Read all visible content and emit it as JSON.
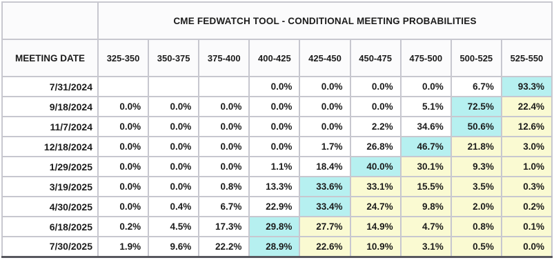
{
  "colors": {
    "cyan_highlight": "#b6f0f0",
    "yellow_highlight": "#fafad2",
    "grid_border": "#c7c7cf",
    "outer_border": "#b9b9c1",
    "bottom_border": "#57575e",
    "text": "#1b1b1b"
  },
  "chart_data": {
    "type": "table",
    "title": "CME FEDWATCH TOOL - CONDITIONAL MEETING PROBABILITIES",
    "row_header_label": "MEETING DATE",
    "columns": [
      "325-350",
      "350-375",
      "375-400",
      "400-425",
      "425-450",
      "450-475",
      "475-500",
      "500-525",
      "525-550"
    ],
    "rows": [
      {
        "date": "7/31/2024",
        "cells": [
          {
            "t": "",
            "bg": "white"
          },
          {
            "t": "",
            "bg": "white"
          },
          {
            "t": "",
            "bg": "white"
          },
          {
            "t": "0.0%",
            "bg": "white"
          },
          {
            "t": "0.0%",
            "bg": "white"
          },
          {
            "t": "0.0%",
            "bg": "white"
          },
          {
            "t": "0.0%",
            "bg": "white"
          },
          {
            "t": "6.7%",
            "bg": "white"
          },
          {
            "t": "93.3%",
            "bg": "cyan"
          }
        ]
      },
      {
        "date": "9/18/2024",
        "cells": [
          {
            "t": "0.0%",
            "bg": "white"
          },
          {
            "t": "0.0%",
            "bg": "white"
          },
          {
            "t": "0.0%",
            "bg": "white"
          },
          {
            "t": "0.0%",
            "bg": "white"
          },
          {
            "t": "0.0%",
            "bg": "white"
          },
          {
            "t": "0.0%",
            "bg": "white"
          },
          {
            "t": "5.1%",
            "bg": "white"
          },
          {
            "t": "72.5%",
            "bg": "cyan"
          },
          {
            "t": "22.4%",
            "bg": "yellow"
          }
        ]
      },
      {
        "date": "11/7/2024",
        "cells": [
          {
            "t": "0.0%",
            "bg": "white"
          },
          {
            "t": "0.0%",
            "bg": "white"
          },
          {
            "t": "0.0%",
            "bg": "white"
          },
          {
            "t": "0.0%",
            "bg": "white"
          },
          {
            "t": "0.0%",
            "bg": "white"
          },
          {
            "t": "2.2%",
            "bg": "white"
          },
          {
            "t": "34.6%",
            "bg": "white"
          },
          {
            "t": "50.6%",
            "bg": "cyan"
          },
          {
            "t": "12.6%",
            "bg": "yellow"
          }
        ]
      },
      {
        "date": "12/18/2024",
        "cells": [
          {
            "t": "0.0%",
            "bg": "white"
          },
          {
            "t": "0.0%",
            "bg": "white"
          },
          {
            "t": "0.0%",
            "bg": "white"
          },
          {
            "t": "0.0%",
            "bg": "white"
          },
          {
            "t": "1.7%",
            "bg": "white"
          },
          {
            "t": "26.8%",
            "bg": "white"
          },
          {
            "t": "46.7%",
            "bg": "cyan"
          },
          {
            "t": "21.8%",
            "bg": "yellow"
          },
          {
            "t": "3.0%",
            "bg": "yellow"
          }
        ]
      },
      {
        "date": "1/29/2025",
        "cells": [
          {
            "t": "0.0%",
            "bg": "white"
          },
          {
            "t": "0.0%",
            "bg": "white"
          },
          {
            "t": "0.0%",
            "bg": "white"
          },
          {
            "t": "1.1%",
            "bg": "white"
          },
          {
            "t": "18.4%",
            "bg": "white"
          },
          {
            "t": "40.0%",
            "bg": "cyan"
          },
          {
            "t": "30.1%",
            "bg": "yellow"
          },
          {
            "t": "9.3%",
            "bg": "yellow"
          },
          {
            "t": "1.0%",
            "bg": "yellow"
          }
        ]
      },
      {
        "date": "3/19/2025",
        "cells": [
          {
            "t": "0.0%",
            "bg": "white"
          },
          {
            "t": "0.0%",
            "bg": "white"
          },
          {
            "t": "0.8%",
            "bg": "white"
          },
          {
            "t": "13.3%",
            "bg": "white"
          },
          {
            "t": "33.6%",
            "bg": "cyan"
          },
          {
            "t": "33.1%",
            "bg": "yellow"
          },
          {
            "t": "15.5%",
            "bg": "yellow"
          },
          {
            "t": "3.5%",
            "bg": "yellow"
          },
          {
            "t": "0.3%",
            "bg": "yellow"
          }
        ]
      },
      {
        "date": "4/30/2025",
        "cells": [
          {
            "t": "0.0%",
            "bg": "white"
          },
          {
            "t": "0.4%",
            "bg": "white"
          },
          {
            "t": "6.7%",
            "bg": "white"
          },
          {
            "t": "22.9%",
            "bg": "white"
          },
          {
            "t": "33.4%",
            "bg": "cyan"
          },
          {
            "t": "24.7%",
            "bg": "yellow"
          },
          {
            "t": "9.8%",
            "bg": "yellow"
          },
          {
            "t": "2.0%",
            "bg": "yellow"
          },
          {
            "t": "0.2%",
            "bg": "yellow"
          }
        ]
      },
      {
        "date": "6/18/2025",
        "cells": [
          {
            "t": "0.2%",
            "bg": "white"
          },
          {
            "t": "4.5%",
            "bg": "white"
          },
          {
            "t": "17.3%",
            "bg": "white"
          },
          {
            "t": "29.8%",
            "bg": "cyan"
          },
          {
            "t": "27.7%",
            "bg": "yellow"
          },
          {
            "t": "14.9%",
            "bg": "yellow"
          },
          {
            "t": "4.7%",
            "bg": "yellow"
          },
          {
            "t": "0.8%",
            "bg": "yellow"
          },
          {
            "t": "0.1%",
            "bg": "yellow"
          }
        ]
      },
      {
        "date": "7/30/2025",
        "cells": [
          {
            "t": "1.9%",
            "bg": "white"
          },
          {
            "t": "9.6%",
            "bg": "white"
          },
          {
            "t": "22.2%",
            "bg": "white"
          },
          {
            "t": "28.9%",
            "bg": "cyan"
          },
          {
            "t": "22.6%",
            "bg": "yellow"
          },
          {
            "t": "10.9%",
            "bg": "yellow"
          },
          {
            "t": "3.1%",
            "bg": "yellow"
          },
          {
            "t": "0.5%",
            "bg": "yellow"
          },
          {
            "t": "0.0%",
            "bg": "yellow"
          }
        ]
      }
    ]
  }
}
